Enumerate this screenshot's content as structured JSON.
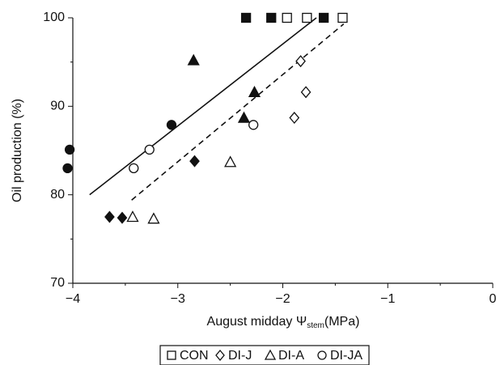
{
  "chart_data": {
    "type": "scatter",
    "xlabel_parts": [
      "August midday Ψ",
      "stem",
      "(MPa)"
    ],
    "ylabel": "Oil production (%)",
    "xlim": [
      -4,
      0
    ],
    "ylim": [
      70,
      100
    ],
    "xticks": [
      {
        "value": -4,
        "label": "−4"
      },
      {
        "value": -3,
        "label": "−3"
      },
      {
        "value": -2,
        "label": "−2"
      },
      {
        "value": -1,
        "label": "−1"
      },
      0
    ],
    "xminorticks": [
      -3.5,
      -2.5,
      -1.5,
      -0.5
    ],
    "yticks": [
      70,
      80,
      90,
      100
    ],
    "yminorticks": [
      75,
      85,
      95
    ],
    "series": [
      {
        "name": "CON",
        "marker": "square",
        "color": "#111111",
        "x": [
          -2.35,
          -2.11,
          -1.61,
          -1.96,
          -1.77,
          -1.43
        ],
        "values": [
          100,
          100,
          100,
          100,
          100,
          100
        ],
        "filled": [
          true,
          true,
          true,
          false,
          false,
          false
        ]
      },
      {
        "name": "DI-J",
        "marker": "diamond",
        "color": "#111111",
        "x": [
          -3.65,
          -3.53,
          -2.84,
          -1.83,
          -1.78,
          -1.89
        ],
        "values": [
          77.5,
          77.4,
          83.8,
          95.1,
          91.6,
          88.7
        ],
        "filled": [
          true,
          true,
          true,
          false,
          false,
          false
        ]
      },
      {
        "name": "DI-A",
        "marker": "triangle",
        "color": "#111111",
        "x": [
          -2.85,
          -2.27,
          -2.37,
          -3.43,
          -3.23,
          -2.5
        ],
        "values": [
          95.2,
          91.6,
          88.7,
          77.5,
          77.3,
          83.7
        ],
        "filled": [
          true,
          true,
          true,
          false,
          false,
          false
        ]
      },
      {
        "name": "DI-JA",
        "marker": "circle",
        "color": "#111111",
        "x": [
          -4.05,
          -4.03,
          -3.06,
          -3.42,
          -3.27,
          -2.28
        ],
        "values": [
          83.0,
          85.1,
          87.9,
          83.0,
          85.1,
          87.9
        ],
        "filled": [
          true,
          true,
          true,
          false,
          false,
          false
        ]
      }
    ],
    "fits": [
      {
        "x": [
          -3.84,
          -1.68
        ],
        "values": [
          80,
          100
        ],
        "dashed": false,
        "color": "#111111"
      },
      {
        "x": [
          -3.44,
          -1.42
        ],
        "values": [
          79.4,
          99.3
        ],
        "dashed": true,
        "color": "#111111"
      }
    ]
  }
}
